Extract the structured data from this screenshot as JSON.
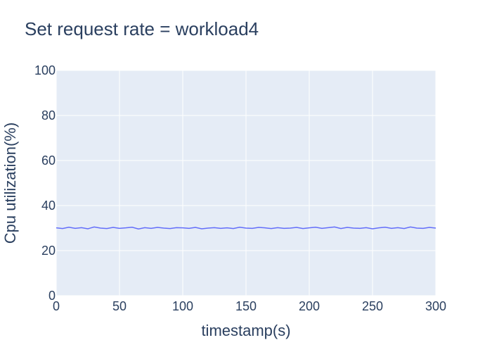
{
  "chart_data": {
    "type": "line",
    "title": "Set request rate = workload4",
    "xlabel": "timestamp(s)",
    "ylabel": "Cpu utilization(%)",
    "xlim": [
      0,
      300
    ],
    "ylim": [
      0,
      100
    ],
    "xticks": [
      "0",
      "50",
      "100",
      "150",
      "200",
      "250",
      "300"
    ],
    "yticks": [
      "0",
      "20",
      "40",
      "60",
      "80",
      "100"
    ],
    "grid": true,
    "colors": {
      "plot_bg": "#e5ecf6",
      "grid": "#ffffff",
      "line": "#636efa",
      "text": "#2a3f5f"
    },
    "series": [
      {
        "x": [
          0,
          5,
          10,
          15,
          20,
          25,
          30,
          35,
          40,
          45,
          50,
          55,
          60,
          65,
          70,
          75,
          80,
          85,
          90,
          95,
          100,
          105,
          110,
          115,
          120,
          125,
          130,
          135,
          140,
          145,
          150,
          155,
          160,
          165,
          170,
          175,
          180,
          185,
          190,
          195,
          200,
          205,
          210,
          215,
          220,
          225,
          230,
          235,
          240,
          245,
          250,
          255,
          260,
          265,
          270,
          275,
          280,
          285,
          290,
          295,
          300
        ],
        "y": [
          30.1,
          29.8,
          30.4,
          29.9,
          30.2,
          29.7,
          30.5,
          30.0,
          29.8,
          30.3,
          29.9,
          30.1,
          30.4,
          29.6,
          30.2,
          29.9,
          30.3,
          30.0,
          29.8,
          30.2,
          30.1,
          29.9,
          30.3,
          29.7,
          30.0,
          30.2,
          29.9,
          30.1,
          29.8,
          30.4,
          30.0,
          29.9,
          30.3,
          30.1,
          29.8,
          30.2,
          29.9,
          30.0,
          30.3,
          29.8,
          30.1,
          30.4,
          29.9,
          30.2,
          30.5,
          29.8,
          30.3,
          30.0,
          29.9,
          30.2,
          29.7,
          30.1,
          30.4,
          29.9,
          30.2,
          29.8,
          30.5,
          30.0,
          29.9,
          30.3,
          30.0
        ]
      }
    ]
  }
}
